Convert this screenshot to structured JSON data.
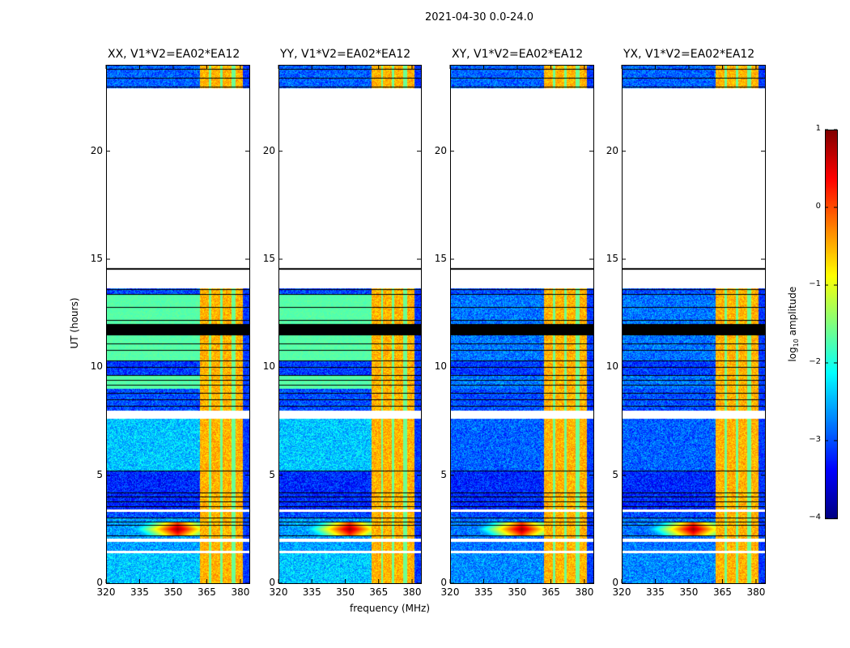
{
  "chart_data": {
    "type": "heatmap",
    "title": "2021-04-30 0.0-24.0",
    "xlabel": "frequency (MHz)",
    "ylabel": "UT (hours)",
    "xlim": [
      320,
      384
    ],
    "ylim": [
      0,
      24
    ],
    "xticks": [
      "320",
      "335",
      "350",
      "365",
      "380"
    ],
    "yticks": [
      "0",
      "5",
      "10",
      "15",
      "20"
    ],
    "xtick_values": [
      320,
      335,
      350,
      365,
      380
    ],
    "ytick_values": [
      0,
      5,
      10,
      15,
      20
    ],
    "colorbar": {
      "label": "log10 amplitude",
      "label_main": "log",
      "label_sub": "10",
      "label_rest": " amplitude",
      "colormap": "jet",
      "range": [
        -4,
        1
      ],
      "ticks": [
        "1",
        "0",
        "−1",
        "−2",
        "−3",
        "−4"
      ],
      "tick_values": [
        1,
        0,
        -1,
        -2,
        -3,
        -4
      ]
    },
    "band": {
      "start_mhz": 362,
      "end_mhz": 381,
      "level": -0.5,
      "stripes_mhz": [
        366.5,
        371.5,
        376.5,
        377.5
      ],
      "stripe_level": -1.6
    },
    "rfi": {
      "freq_mhz": 352,
      "time_h": 2.5,
      "level": 0.9
    },
    "panels": [
      {
        "title": "XX, V1*V2=EA02*EA12",
        "kind": "parallel"
      },
      {
        "title": "YY, V1*V2=EA02*EA12",
        "kind": "parallel"
      },
      {
        "title": "XY, V1*V2=EA02*EA12",
        "kind": "cross"
      },
      {
        "title": "YX, V1*V2=EA02*EA12",
        "kind": "cross"
      }
    ],
    "row_segments": [
      {
        "from": 0.0,
        "to": 1.4,
        "parallel": -2.4,
        "cross": -2.7
      },
      {
        "from": 1.4,
        "to": 1.5,
        "state": "empty"
      },
      {
        "from": 1.5,
        "to": 1.9,
        "parallel": -2.6,
        "cross": -2.8
      },
      {
        "from": 1.9,
        "to": 2.05,
        "state": "empty"
      },
      {
        "from": 2.05,
        "to": 3.0,
        "parallel": -2.6,
        "cross": -2.8
      },
      {
        "from": 3.0,
        "to": 3.3,
        "parallel": -3.0,
        "cross": -3.0
      },
      {
        "from": 3.3,
        "to": 3.4,
        "state": "empty"
      },
      {
        "from": 3.4,
        "to": 5.2,
        "parallel": -3.2,
        "cross": -3.2
      },
      {
        "from": 5.2,
        "to": 7.6,
        "parallel": -2.4,
        "cross": -2.9
      },
      {
        "from": 7.6,
        "to": 8.0,
        "state": "empty"
      },
      {
        "from": 8.0,
        "to": 9.0,
        "parallel": -3.0,
        "cross": -3.0
      },
      {
        "from": 9.0,
        "to": 9.6,
        "parallel": -1.7,
        "cross": -2.8
      },
      {
        "from": 9.6,
        "to": 10.3,
        "parallel": -3.1,
        "cross": -3.1
      },
      {
        "from": 10.3,
        "to": 11.5,
        "parallel": -1.7,
        "cross": -2.8
      },
      {
        "from": 11.5,
        "to": 12.0,
        "state": "flagged"
      },
      {
        "from": 12.0,
        "to": 13.4,
        "parallel": -1.7,
        "cross": -2.8
      },
      {
        "from": 13.4,
        "to": 13.65,
        "parallel": -3.0,
        "cross": -3.0
      },
      {
        "from": 13.65,
        "to": 14.5,
        "state": "empty"
      },
      {
        "from": 14.5,
        "to": 14.6,
        "state": "flagged"
      },
      {
        "from": 14.6,
        "to": 22.9,
        "state": "empty"
      },
      {
        "from": 22.9,
        "to": 24.0,
        "parallel": -2.9,
        "cross": -2.9
      }
    ],
    "flag_lines_h": [
      2.2,
      2.7,
      2.85,
      3.05,
      3.55,
      3.8,
      4.0,
      4.2,
      5.2,
      8.2,
      8.5,
      8.8,
      9.2,
      9.4,
      9.65,
      10.0,
      10.3,
      10.8,
      11.1,
      11.5,
      12.2,
      12.8,
      13.4,
      13.6,
      23.0,
      23.4,
      23.8
    ]
  }
}
